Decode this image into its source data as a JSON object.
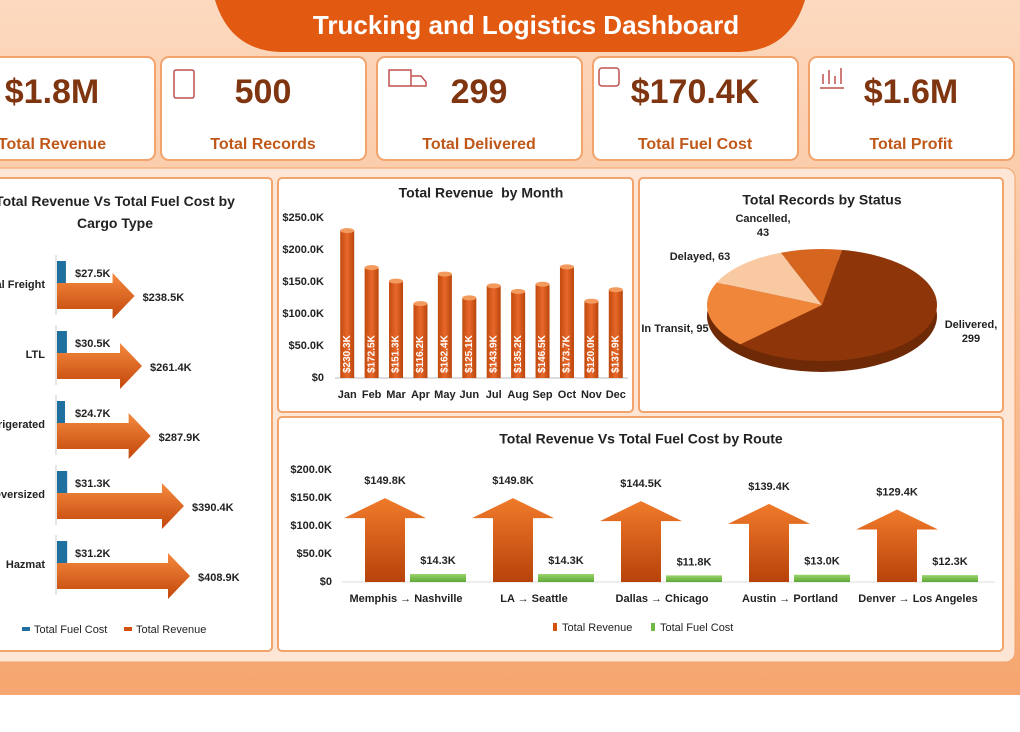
{
  "header": {
    "title": "Trucking and Logistics Dashboard"
  },
  "kpis": [
    {
      "value": "$1.8M",
      "label": "Total Revenue"
    },
    {
      "value": "500",
      "label": "Total Records"
    },
    {
      "value": "299",
      "label": "Total Delivered"
    },
    {
      "value": "$170.4K",
      "label": "Total Fuel Cost"
    },
    {
      "value": "$1.6M",
      "label": "Total Profit"
    }
  ],
  "chart_data": [
    {
      "type": "hbar-arrow",
      "title": "Total Revenue Vs Total Fuel Cost by Cargo Type",
      "categories": [
        "General Freight",
        "LTL",
        "Refrigerated",
        "Oversized",
        "Hazmat"
      ],
      "series": [
        {
          "name": "Total Fuel Cost",
          "color": "#1F6F9F",
          "values": [
            27500,
            30500,
            24700,
            31300,
            31200
          ],
          "value_labels": [
            "$27.5K",
            "$30.5K",
            "$24.7K",
            "$31.3K",
            "$31.2K"
          ]
        },
        {
          "name": "Total Revenue",
          "color": "#D2520E",
          "values": [
            238500,
            261400,
            287900,
            390400,
            408900
          ],
          "value_labels": [
            "$238.5K",
            "$261.4K",
            "$287.9K",
            "$390.4K",
            "$408.9K"
          ]
        }
      ],
      "legend": "bottom"
    },
    {
      "type": "bar",
      "title": "Total Revenue  by Month",
      "categories": [
        "Jan",
        "Feb",
        "Mar",
        "Apr",
        "May",
        "Jun",
        "Jul",
        "Aug",
        "Sep",
        "Oct",
        "Nov",
        "Dec"
      ],
      "values": [
        230300,
        172500,
        151300,
        116200,
        162400,
        125100,
        143900,
        135200,
        146500,
        173700,
        120000,
        137900
      ],
      "value_labels": [
        "$230.3K",
        "$172.5K",
        "$151.3K",
        "$116.2K",
        "$162.4K",
        "$125.1K",
        "$143.9K",
        "$135.2K",
        "$146.5K",
        "$173.7K",
        "$120.0K",
        "$137.9K"
      ],
      "color": "#D2520E",
      "ylim": [
        0,
        250000
      ],
      "yticks": [
        {
          "value": 0,
          "label": "$0"
        },
        {
          "value": 50000,
          "label": "$50.0K"
        },
        {
          "value": 100000,
          "label": "$100.0K"
        },
        {
          "value": 150000,
          "label": "$150.0K"
        },
        {
          "value": 200000,
          "label": "$200.0K"
        },
        {
          "value": 250000,
          "label": "$250.0K"
        }
      ],
      "grid": false
    },
    {
      "type": "pie",
      "title": "Total Records by Status",
      "values": [
        299,
        95,
        63,
        43
      ],
      "value_labels": [
        "Delivered, 299",
        "In Transit, 95",
        "Delayed, 63",
        "Cancelled, 43"
      ],
      "colors": [
        "#8E360A",
        "#F0863A",
        "#F9C9A2",
        "#D6651F"
      ]
    },
    {
      "type": "arrow-bar",
      "title": "Total Revenue Vs Total Fuel Cost by Route",
      "categories": [
        "Memphis → Nashville",
        "LA → Seattle",
        "Dallas → Chicago",
        "Austin → Portland",
        "Denver → Los Angeles"
      ],
      "series": [
        {
          "name": "Total Revenue",
          "color": "#D2520E",
          "values": [
            149800,
            149800,
            144500,
            139400,
            129400
          ],
          "value_labels": [
            "$149.8K",
            "$149.8K",
            "$144.5K",
            "$139.4K",
            "$129.4K"
          ]
        },
        {
          "name": "Total Fuel Cost",
          "color": "#70B845",
          "values": [
            14300,
            14300,
            11800,
            13000,
            12300
          ],
          "value_labels": [
            "$14.3K",
            "$14.3K",
            "$11.8K",
            "$13.0K",
            "$12.3K"
          ]
        }
      ],
      "ylim": [
        0,
        200000
      ],
      "yticks": [
        {
          "value": 0,
          "label": "$0"
        },
        {
          "value": 50000,
          "label": "$50.0K"
        },
        {
          "value": 100000,
          "label": "$100.0K"
        },
        {
          "value": 150000,
          "label": "$150.0K"
        },
        {
          "value": 200000,
          "label": "$200.0K"
        }
      ],
      "legend": "bottom"
    }
  ]
}
